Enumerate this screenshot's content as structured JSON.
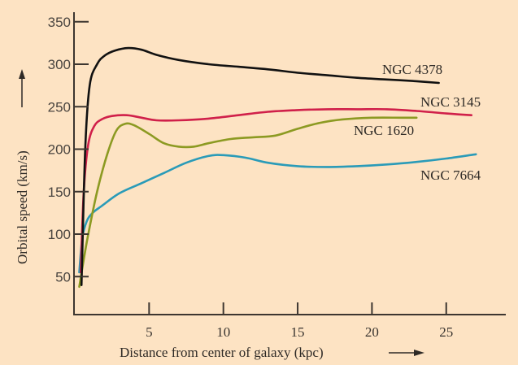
{
  "chart_data": {
    "type": "line",
    "title": "",
    "xlabel": "Distance from center of  galaxy (kpc)",
    "ylabel": "Orbital speed (km/s)",
    "xlim": [
      0,
      29
    ],
    "ylim": [
      5,
      360
    ],
    "x_ticks": [
      5,
      10,
      15,
      20,
      25
    ],
    "y_ticks": [
      50,
      100,
      150,
      200,
      250,
      300,
      350
    ],
    "grid": false,
    "legend": "inline labels at right end of each curve",
    "background_color": "#fde3c3",
    "series": [
      {
        "name": "NGC 4378",
        "color": "#111111",
        "x": [
          0.45,
          0.7,
          1.0,
          1.5,
          2.0,
          2.7,
          3.6,
          4.5,
          5.5,
          7,
          9,
          11,
          13,
          15,
          17,
          19,
          21,
          23,
          24.5
        ],
        "y": [
          40,
          200,
          275,
          300,
          310,
          316,
          319,
          317,
          311,
          305,
          300,
          297,
          294,
          290,
          287,
          284,
          282,
          280,
          278
        ]
      },
      {
        "name": "NGC 3145",
        "color": "#d0204a",
        "x": [
          0.4,
          0.6,
          0.9,
          1.3,
          1.8,
          2.5,
          3.5,
          4.5,
          5.5,
          7,
          9,
          11,
          13,
          15,
          17,
          19,
          21,
          23,
          25,
          26.7
        ],
        "y": [
          55,
          150,
          205,
          227,
          235,
          239,
          240,
          237,
          234,
          234,
          236,
          240,
          244,
          246,
          247,
          247,
          247,
          245,
          242,
          240
        ]
      },
      {
        "name": "NGC 1620",
        "color": "#8c9a22",
        "x": [
          0.3,
          0.8,
          1.5,
          2.2,
          2.8,
          3.4,
          4.0,
          5.0,
          6.0,
          7.0,
          8.0,
          9.0,
          10.5,
          12,
          13.5,
          15,
          16.5,
          18,
          20,
          22,
          23
        ],
        "y": [
          38,
          90,
          150,
          195,
          222,
          230,
          228,
          218,
          207,
          203,
          203,
          207,
          212,
          214,
          216,
          224,
          231,
          235,
          237,
          237,
          237
        ]
      },
      {
        "name": "NGC 7664",
        "color": "#2a9bb8",
        "x": [
          0.3,
          0.5,
          0.8,
          1.2,
          1.8,
          3.0,
          4.5,
          6.0,
          7.5,
          9.0,
          10.0,
          11.5,
          13,
          15,
          17,
          19,
          21,
          23,
          25,
          27
        ],
        "y": [
          55,
          95,
          115,
          125,
          133,
          148,
          160,
          172,
          184,
          192,
          193,
          190,
          184,
          180,
          179,
          180,
          182,
          185,
          189,
          194
        ]
      }
    ]
  }
}
